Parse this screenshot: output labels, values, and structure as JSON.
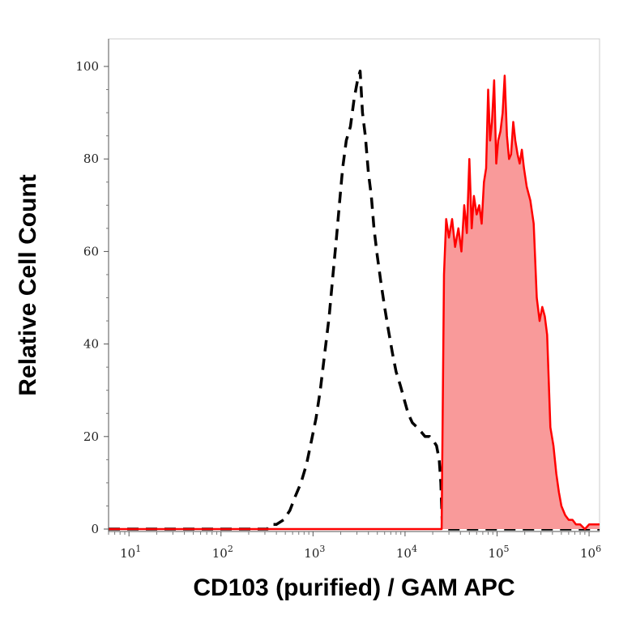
{
  "chart_data": {
    "type": "area",
    "xlabel": "CD103 (purified) / GAM APC",
    "ylabel": "Relative Cell Count",
    "xscale": "log",
    "xlim": [
      6,
      1300000
    ],
    "ylim": [
      0,
      100
    ],
    "x_ticks": [
      {
        "base": "10",
        "exp": "1",
        "value": 10
      },
      {
        "base": "10",
        "exp": "2",
        "value": 100
      },
      {
        "base": "10",
        "exp": "3",
        "value": 1000
      },
      {
        "base": "10",
        "exp": "4",
        "value": 10000
      },
      {
        "base": "10",
        "exp": "5",
        "value": 100000
      },
      {
        "base": "10",
        "exp": "6",
        "value": 1000000
      }
    ],
    "y_ticks": [
      {
        "label": "0",
        "value": 0
      },
      {
        "label": "20",
        "value": 20
      },
      {
        "label": "40",
        "value": 40
      },
      {
        "label": "60",
        "value": 60
      },
      {
        "label": "80",
        "value": 80
      },
      {
        "label": "100",
        "value": 100
      }
    ],
    "grid": false,
    "legend": "none",
    "series": [
      {
        "style": "dashed",
        "color": "#000000",
        "x": [
          6,
          320,
          340,
          400,
          480,
          560,
          640,
          740,
          850,
          960,
          1080,
          1200,
          1340,
          1500,
          1650,
          1800,
          1950,
          2100,
          2300,
          2550,
          2800,
          3050,
          3250,
          3450,
          3700,
          4000,
          4300,
          4600,
          5000,
          5500,
          6000,
          6600,
          7300,
          8000,
          8900,
          9800,
          10800,
          12000,
          13500,
          15000,
          16500,
          18500,
          20500,
          22000,
          23500,
          24500,
          25500,
          1300000
        ],
        "y": [
          0,
          0,
          1,
          1,
          2,
          4,
          7,
          10,
          14,
          19,
          24,
          30,
          38,
          46,
          55,
          63,
          71,
          78,
          84,
          87,
          93,
          97,
          99,
          90,
          85,
          77,
          72,
          65,
          59,
          53,
          48,
          43,
          38,
          34,
          31,
          28,
          25,
          23,
          22,
          21,
          20,
          20,
          19,
          18,
          15,
          10,
          0,
          0
        ]
      },
      {
        "style": "filled",
        "color": "#ff0000",
        "fill": "#f99a9a",
        "x": [
          6,
          25000,
          25300,
          26500,
          28000,
          30000,
          32500,
          35000,
          38000,
          41000,
          44000,
          47000,
          50000,
          53000,
          56000,
          60000,
          64000,
          68000,
          72000,
          76000,
          80000,
          84000,
          88000,
          93000,
          98000,
          103000,
          109000,
          115000,
          121000,
          128000,
          135000,
          142000,
          150000,
          158000,
          167000,
          176000,
          186000,
          196000,
          210000,
          230000,
          250000,
          270000,
          290000,
          310000,
          330000,
          350000,
          380000,
          410000,
          440000,
          470000,
          500000,
          550000,
          600000,
          660000,
          720000,
          800000,
          900000,
          1000000,
          1150000,
          1300000
        ],
        "y": [
          0,
          0,
          12,
          55,
          67,
          63,
          67,
          61,
          65,
          60,
          70,
          64,
          80,
          65,
          72,
          68,
          70,
          66,
          75,
          78,
          95,
          84,
          88,
          97,
          79,
          84,
          86,
          90,
          98,
          85,
          80,
          81,
          88,
          84,
          81,
          79,
          82,
          78,
          74,
          71,
          66,
          50,
          45,
          48,
          46,
          42,
          22,
          18,
          12,
          8,
          5,
          3,
          2,
          2,
          1,
          1,
          0,
          1,
          1,
          1
        ]
      }
    ]
  }
}
